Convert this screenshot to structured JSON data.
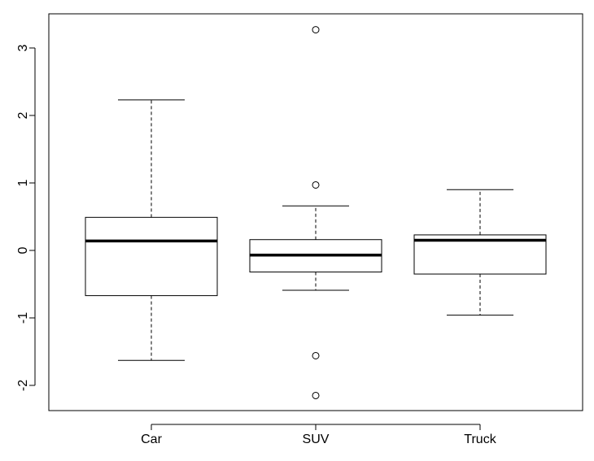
{
  "chart_data": {
    "type": "boxplot",
    "title": "",
    "xlabel": "",
    "ylabel": "",
    "categories": [
      "Car",
      "SUV",
      "Truck"
    ],
    "ylim": [
      -2.4,
      3.4
    ],
    "yticks": [
      -2,
      -1,
      0,
      1,
      2,
      3
    ],
    "ytick_labels": [
      "-2",
      "-1",
      "0",
      "1",
      "2",
      "3"
    ],
    "boxes": [
      {
        "category": "Car",
        "whisker_low": -1.63,
        "q1": -0.67,
        "median": 0.14,
        "q3": 0.49,
        "whisker_high": 2.23,
        "outliers": []
      },
      {
        "category": "SUV",
        "whisker_low": -0.59,
        "q1": -0.32,
        "median": -0.07,
        "q3": 0.16,
        "whisker_high": 0.66,
        "outliers": [
          3.27,
          0.97,
          -1.56,
          -2.15
        ]
      },
      {
        "category": "Truck",
        "whisker_low": -0.96,
        "q1": -0.35,
        "median": 0.15,
        "q3": 0.23,
        "whisker_high": 0.9,
        "outliers": []
      }
    ],
    "grid": false,
    "colors": {
      "box_fill": "#ffffff",
      "line": "#000000"
    }
  }
}
